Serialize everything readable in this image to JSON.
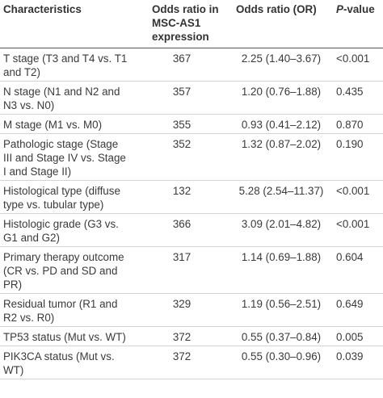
{
  "table": {
    "header": [
      "Characteristics",
      "Odds ratio in MSC-AS1 expression",
      "Odds ratio (OR)",
      {
        "italic": "P",
        "text": "-value"
      }
    ],
    "rows": [
      [
        "T stage (T3 and T4 vs. T1 and T2)",
        "367",
        "2.25 (1.40–3.67)",
        "<0.001"
      ],
      [
        "N stage (N1 and N2 and N3 vs. N0)",
        "357",
        "1.20 (0.76–1.88)",
        "0.435"
      ],
      [
        "M stage (M1 vs. M0)",
        "355",
        "0.93 (0.41–2.12)",
        "0.870"
      ],
      [
        "Pathologic stage (Stage III and Stage IV vs. Stage I and Stage II)",
        "352",
        "1.32 (0.87–2.02)",
        "0.190"
      ],
      [
        "Histological type (diffuse type vs. tubular type)",
        "132",
        "5.28 (2.54–11.37)",
        "<0.001"
      ],
      [
        "Histologic grade (G3 vs. G1 and G2)",
        "366",
        "3.09 (2.01–4.82)",
        "<0.001"
      ],
      [
        "Primary therapy outcome (CR vs. PD and SD and PR)",
        "317",
        "1.14 (0.69–1.88)",
        "0.604"
      ],
      [
        "Residual tumor (R1 and R2 vs. R0)",
        "329",
        "1.19 (0.56–2.51)",
        "0.649"
      ],
      [
        "TP53 status (Mut vs. WT)",
        "372",
        "0.55 (0.37–0.84)",
        "0.005"
      ],
      [
        "PIK3CA status (Mut vs. WT)",
        "372",
        "0.55 (0.30–0.96)",
        "0.039"
      ]
    ]
  }
}
